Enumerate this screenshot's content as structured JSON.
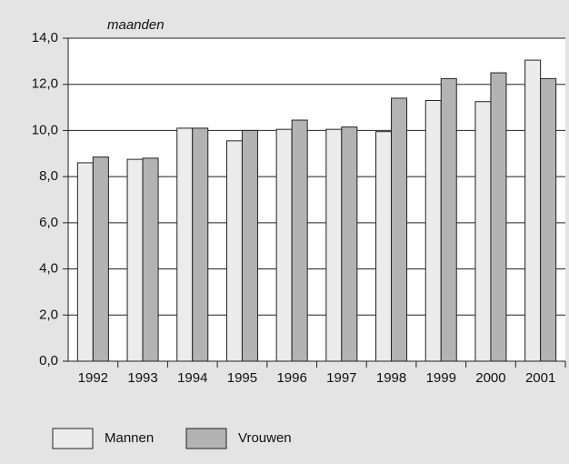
{
  "chart_data": {
    "type": "bar",
    "y_axis_label": "maanden",
    "categories": [
      "1992",
      "1993",
      "1994",
      "1995",
      "1996",
      "1997",
      "1998",
      "1999",
      "2000",
      "2001"
    ],
    "series": [
      {
        "name": "Mannen",
        "color": "#ececec",
        "values": [
          8.6,
          8.75,
          10.1,
          9.55,
          10.05,
          10.05,
          9.95,
          11.3,
          11.25,
          13.05
        ]
      },
      {
        "name": "Vrouwen",
        "color": "#b3b3b3",
        "values": [
          8.85,
          8.8,
          10.1,
          10.0,
          10.45,
          10.15,
          11.4,
          12.25,
          12.5,
          12.25
        ]
      }
    ],
    "ylim": [
      0,
      14
    ],
    "yticks": [
      {
        "value": 0,
        "label": "0,0"
      },
      {
        "value": 2,
        "label": "2,0"
      },
      {
        "value": 4,
        "label": "4,0"
      },
      {
        "value": 6,
        "label": "6,0"
      },
      {
        "value": 8,
        "label": "8,0"
      },
      {
        "value": 10,
        "label": "10,0"
      },
      {
        "value": 12,
        "label": "12,0"
      },
      {
        "value": 14,
        "label": "14,0"
      }
    ],
    "grid": true
  }
}
